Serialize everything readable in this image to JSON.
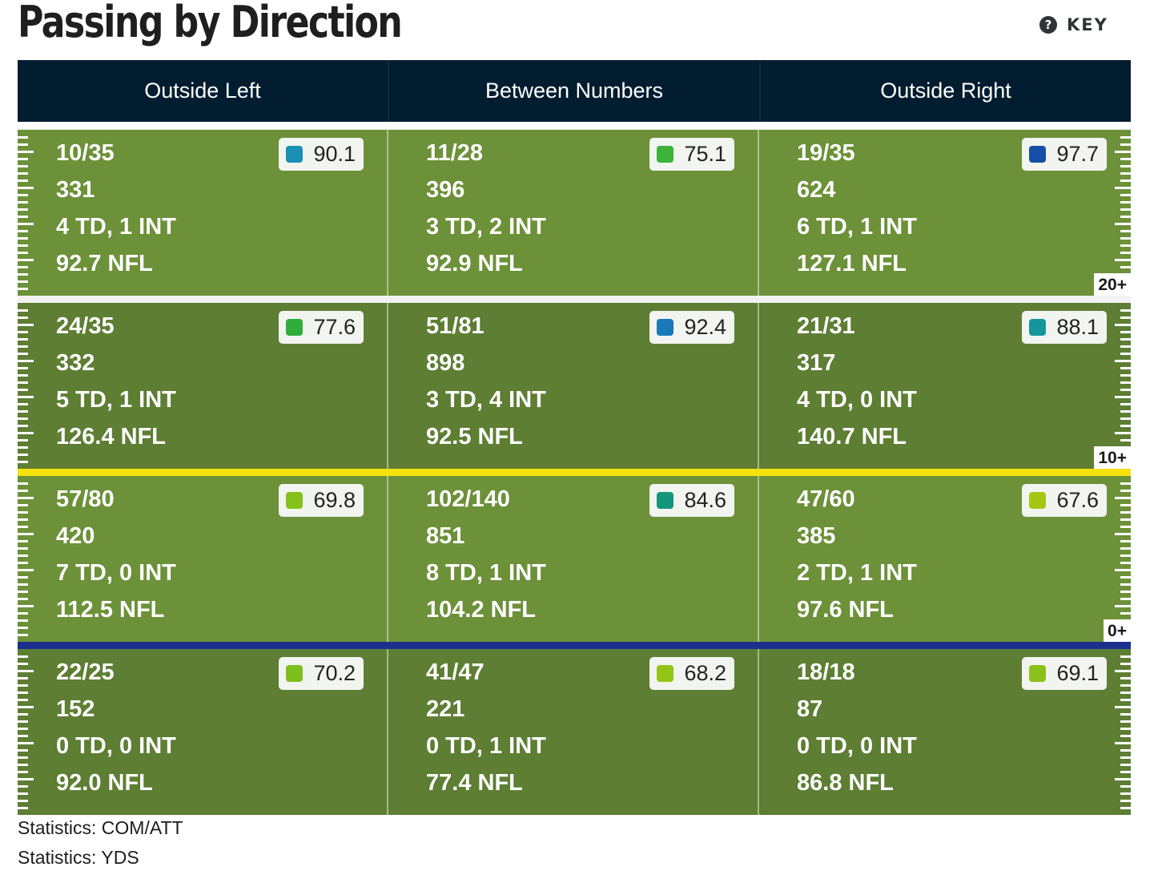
{
  "title": "Passing by Direction",
  "key": {
    "icon": "question-circle-icon",
    "label": "KEY"
  },
  "columns": [
    "Outside Left",
    "Between Numbers",
    "Outside Right"
  ],
  "zones": [
    {
      "depth": "20+",
      "shade": "light",
      "cells": [
        {
          "comp_att": "10/35",
          "yds": "331",
          "td_int": "4 TD, 1 INT",
          "nfl": "92.7 NFL",
          "grade": "90.1",
          "grade_color": "#1c8fb5"
        },
        {
          "comp_att": "11/28",
          "yds": "396",
          "td_int": "3 TD, 2 INT",
          "nfl": "92.9 NFL",
          "grade": "75.1",
          "grade_color": "#3cb33a"
        },
        {
          "comp_att": "19/35",
          "yds": "624",
          "td_int": "6 TD, 1 INT",
          "nfl": "127.1 NFL",
          "grade": "97.7",
          "grade_color": "#174fa6"
        }
      ]
    },
    {
      "depth": "10+",
      "shade": "dark",
      "cells": [
        {
          "comp_att": "24/35",
          "yds": "332",
          "td_int": "5 TD, 1 INT",
          "nfl": "126.4 NFL",
          "grade": "77.6",
          "grade_color": "#2fae3c"
        },
        {
          "comp_att": "51/81",
          "yds": "898",
          "td_int": "3 TD, 4 INT",
          "nfl": "92.5 NFL",
          "grade": "92.4",
          "grade_color": "#1979b9"
        },
        {
          "comp_att": "21/31",
          "yds": "317",
          "td_int": "4 TD, 0 INT",
          "nfl": "140.7 NFL",
          "grade": "88.1",
          "grade_color": "#16969b"
        }
      ]
    },
    {
      "depth": "0+",
      "shade": "light",
      "cells": [
        {
          "comp_att": "57/80",
          "yds": "420",
          "td_int": "7 TD, 0 INT",
          "nfl": "112.5 NFL",
          "grade": "69.8",
          "grade_color": "#84c11b"
        },
        {
          "comp_att": "102/140",
          "yds": "851",
          "td_int": "8 TD, 1 INT",
          "nfl": "104.2 NFL",
          "grade": "84.6",
          "grade_color": "#13967a"
        },
        {
          "comp_att": "47/60",
          "yds": "385",
          "td_int": "2 TD, 1 INT",
          "nfl": "97.6 NFL",
          "grade": "67.6",
          "grade_color": "#a5c713"
        }
      ]
    },
    {
      "depth": "",
      "shade": "dark",
      "cells": [
        {
          "comp_att": "22/25",
          "yds": "152",
          "td_int": "0 TD, 0 INT",
          "nfl": "92.0 NFL",
          "grade": "70.2",
          "grade_color": "#7dbf1f"
        },
        {
          "comp_att": "41/47",
          "yds": "221",
          "td_int": "0 TD, 1 INT",
          "nfl": "77.4 NFL",
          "grade": "68.2",
          "grade_color": "#94c416"
        },
        {
          "comp_att": "18/18",
          "yds": "87",
          "td_int": "0 TD, 0 INT",
          "nfl": "86.8 NFL",
          "grade": "69.1",
          "grade_color": "#8bc21a"
        }
      ]
    }
  ],
  "markers": {
    "first_down_color": "#f5e10c",
    "line_of_scrimmage_color": "#1b2f8f"
  },
  "footer": [
    "Statistics: COM/ATT",
    "Statistics: YDS"
  ]
}
